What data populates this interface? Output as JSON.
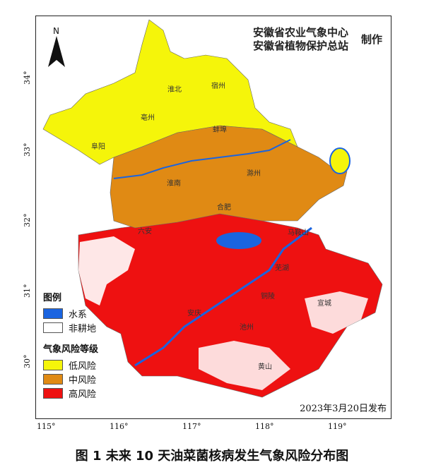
{
  "credit": {
    "org1": "安徽省农业气象中心",
    "org2": "安徽省植物保护总站",
    "made": "制作"
  },
  "north_label": "N",
  "legend": {
    "title": "图例",
    "base_items": [
      {
        "label": "水系",
        "color": "#1a64e0"
      },
      {
        "label": "非耕地",
        "color": "#ffffff"
      }
    ],
    "risk_title": "气象风险等级",
    "risk_items": [
      {
        "label": "低风险",
        "color": "#f5f50a"
      },
      {
        "label": "中风险",
        "color": "#e08a14"
      },
      {
        "label": "高风险",
        "color": "#ee1111"
      }
    ]
  },
  "release_date": "2023年3月20日发布",
  "longitude_labels": [
    "115°",
    "116°",
    "117°",
    "118°",
    "119°"
  ],
  "latitude_labels": [
    "34°",
    "33°",
    "32°",
    "31°",
    "30°"
  ],
  "cities": [
    "淮北",
    "宿州",
    "亳州",
    "阜阳",
    "蚌埠",
    "淮南",
    "滁州",
    "合肥",
    "六安",
    "马鞍山",
    "芜湖",
    "宣城",
    "池州",
    "铜陵",
    "安庆",
    "黄山"
  ],
  "caption": "图 1  未来 10 天油菜菌核病发生气象风险分布图"
}
